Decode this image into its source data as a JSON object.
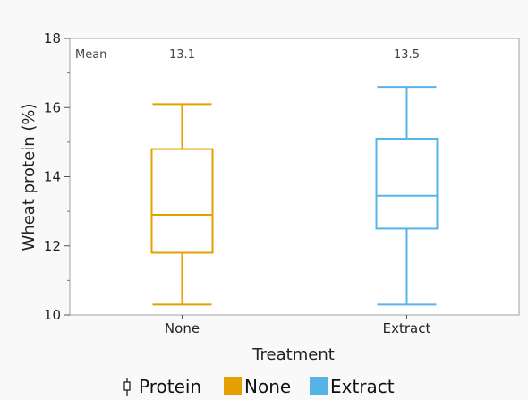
{
  "chart_data": {
    "type": "box",
    "ylabel": "Wheat protein (%)",
    "xlabel": "Treatment",
    "ylim": [
      10,
      18
    ],
    "y_major_ticks": [
      10,
      12,
      14,
      16,
      18
    ],
    "y_minor_ticks": [
      11,
      13,
      15,
      17
    ],
    "mean_header": "Mean",
    "series": [
      {
        "name": "None",
        "color": "#E69F00",
        "min": 10.3,
        "q1": 11.8,
        "median": 12.9,
        "q3": 14.8,
        "max": 16.1,
        "mean": "13.1"
      },
      {
        "name": "Extract",
        "color": "#56B4E9",
        "min": 10.3,
        "q1": 12.5,
        "median": 13.45,
        "q3": 15.1,
        "max": 16.6,
        "mean": "13.5"
      }
    ],
    "legend": {
      "box_item": "Protein",
      "items": [
        {
          "name": "None",
          "color": "#E69F00"
        },
        {
          "name": "Extract",
          "color": "#56B4E9"
        }
      ]
    }
  }
}
